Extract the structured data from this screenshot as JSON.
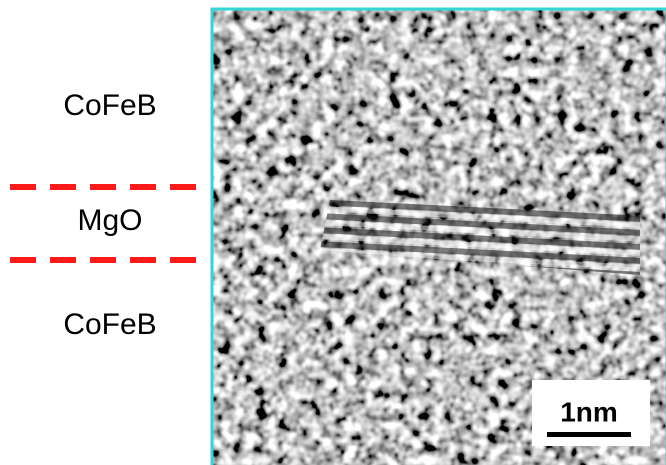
{
  "labels": {
    "top": "CoFeB",
    "middle": "MgO",
    "bottom": "CoFeB"
  },
  "scale_bar": {
    "label": "1nm"
  }
}
